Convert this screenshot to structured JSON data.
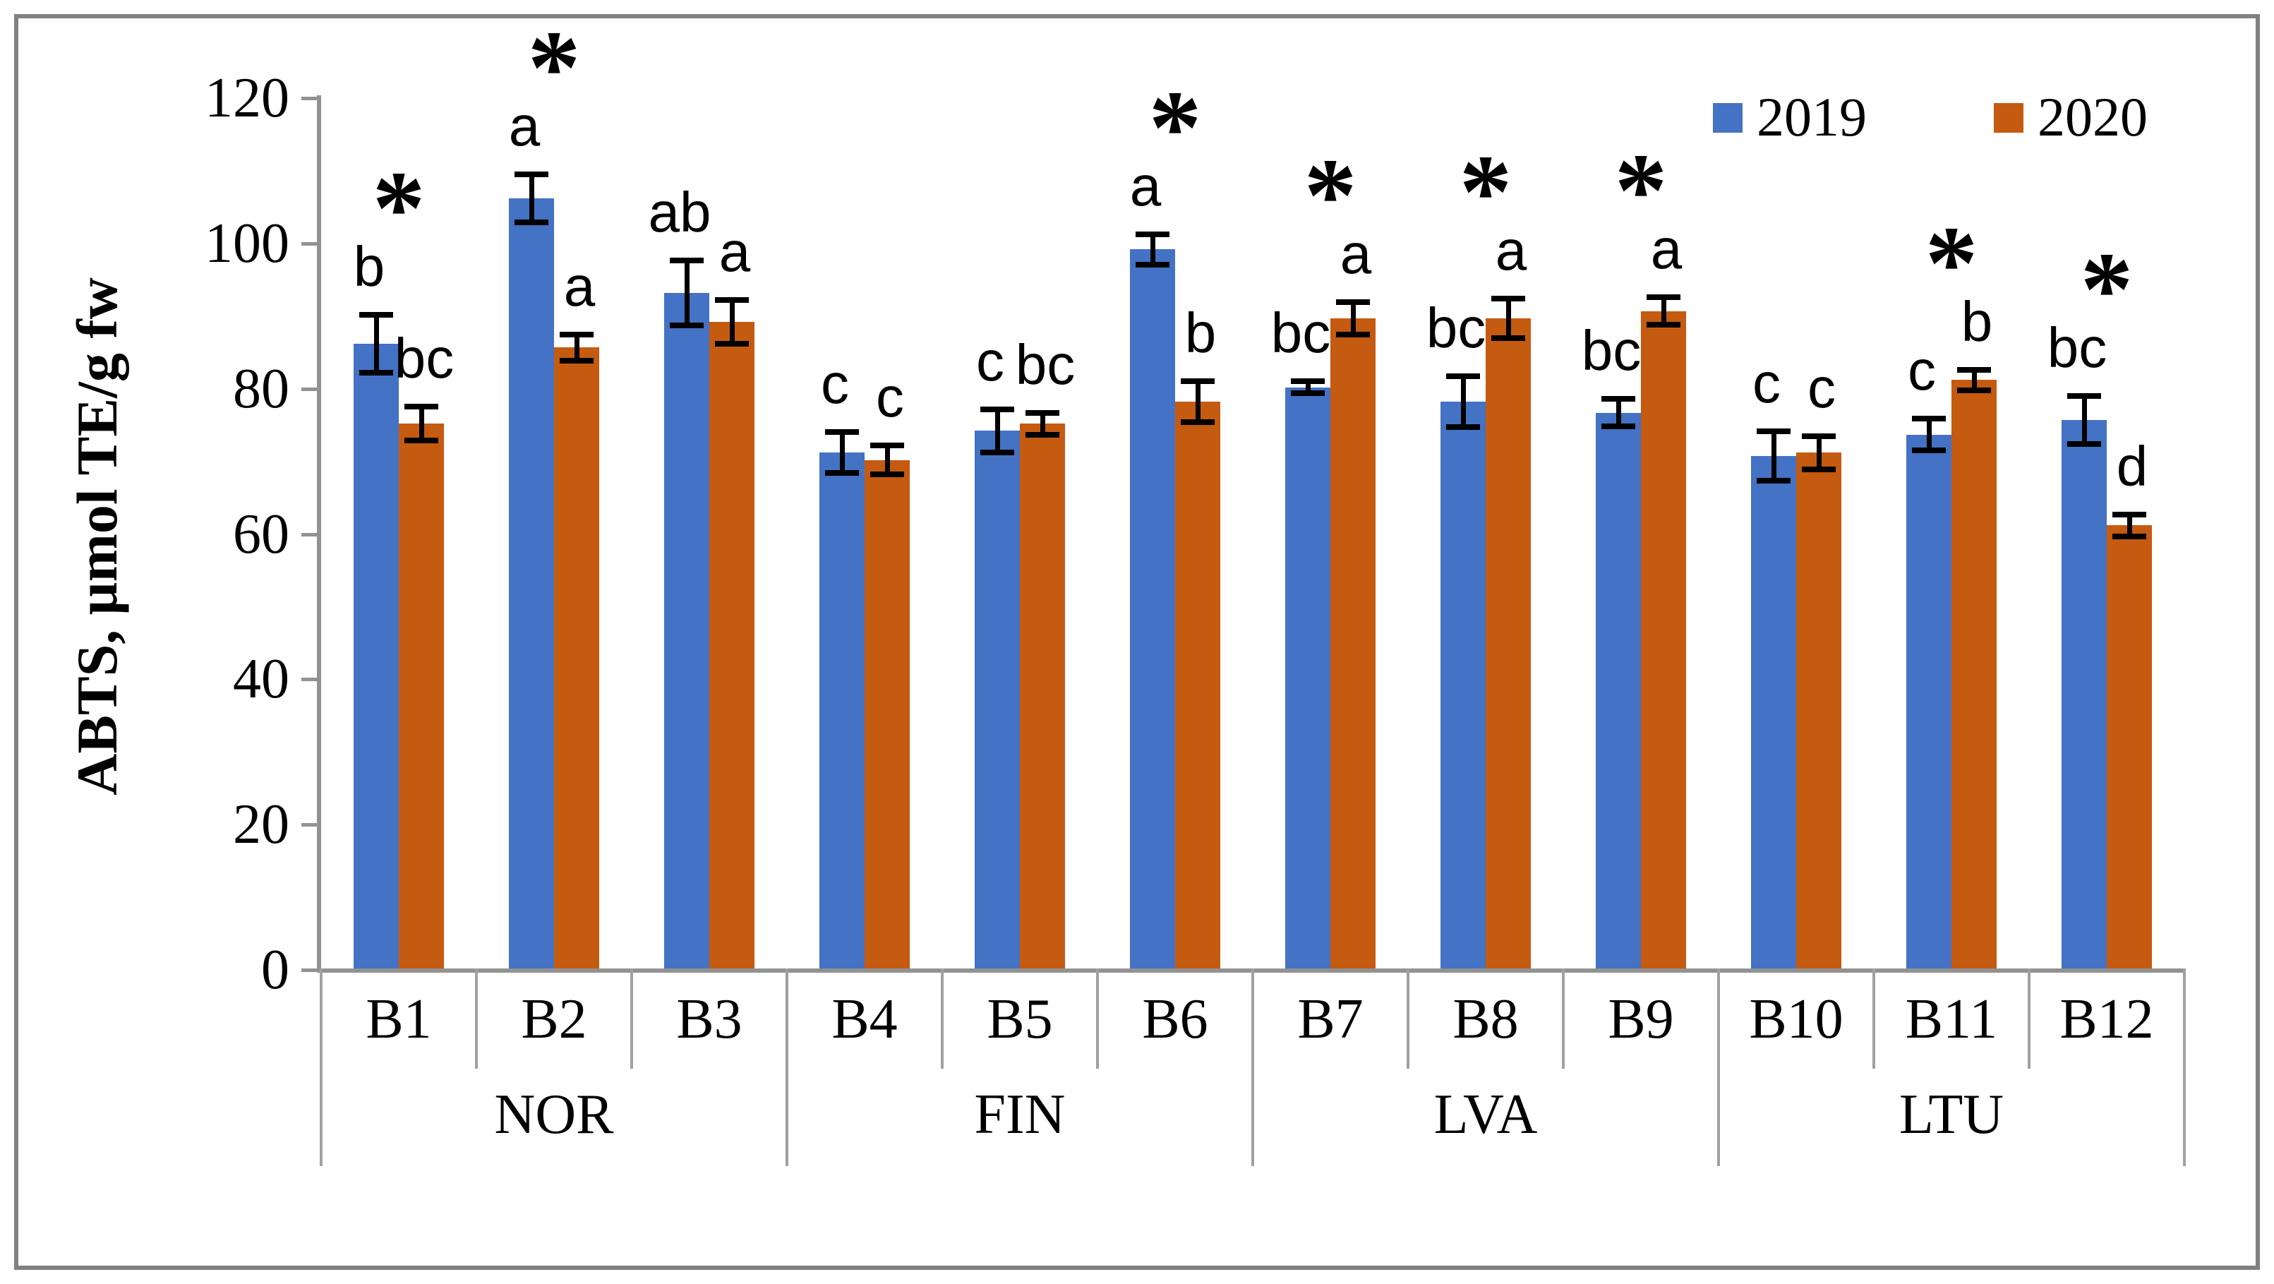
{
  "colors": {
    "series_2019": "#4472C4",
    "series_2020": "#C55A11",
    "axis": "#929292",
    "separator": "#A0A0A0",
    "frame_border": "#808080",
    "annotation": "#000000",
    "background": "#FFFFFF"
  },
  "significance_marker": "*",
  "chart_data": {
    "type": "bar",
    "title": "",
    "ylabel": "ABTS, µmol TE/g fw",
    "xlabel": "",
    "ylim": [
      0,
      120
    ],
    "yticks": [
      0,
      20,
      40,
      60,
      80,
      100,
      120
    ],
    "grid": false,
    "legend_position": "top-right",
    "categories": [
      "B1",
      "B2",
      "B3",
      "B4",
      "B5",
      "B6",
      "B7",
      "B8",
      "B9",
      "B10",
      "B11",
      "B12"
    ],
    "group_labels": [
      {
        "label": "NOR",
        "span": 3
      },
      {
        "label": "FIN",
        "span": 3
      },
      {
        "label": "LVA",
        "span": 3
      },
      {
        "label": "LTU",
        "span": 3
      }
    ],
    "series": [
      {
        "name": "2019",
        "color": "#4472C4",
        "values": [
          86,
          106,
          93,
          71,
          74,
          99,
          80,
          78,
          76.5,
          70.5,
          73.5,
          75.5
        ],
        "errors": [
          4,
          3.3,
          4.5,
          2.8,
          3,
          2.1,
          0.8,
          3.5,
          1.9,
          3.4,
          2.2,
          3.3
        ],
        "letters": [
          "b",
          "a",
          "ab",
          "c",
          "c",
          "a",
          "bc",
          "bc",
          "bc",
          "c",
          "c",
          "bc"
        ]
      },
      {
        "name": "2020",
        "color": "#C55A11",
        "values": [
          75,
          85.5,
          89,
          70,
          75,
          78,
          89.5,
          89.5,
          90.5,
          71,
          81,
          61
        ],
        "errors": [
          2.3,
          1.8,
          3,
          2,
          1.5,
          2.8,
          2.2,
          2.7,
          1.9,
          2.3,
          1.4,
          1.5
        ],
        "letters": [
          "bc",
          "a",
          "a",
          "c",
          "bc",
          "b",
          "a",
          "a",
          "a",
          "c",
          "b",
          "d"
        ]
      }
    ],
    "significance": [
      true,
      true,
      false,
      false,
      false,
      true,
      true,
      true,
      true,
      false,
      true,
      true
    ]
  }
}
